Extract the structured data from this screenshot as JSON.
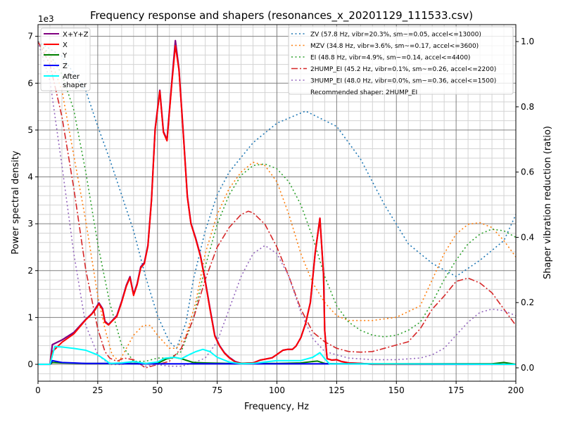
{
  "chart_data": {
    "type": "line",
    "title": "Frequency response and shapers (resonances_x_20201129_111533.csv)",
    "xlabel": "Frequency, Hz",
    "ylabel": "Power spectral density",
    "ylabel_right": "Shaper vibration reduction (ratio)",
    "y_offset_label": "1e3",
    "xlim": [
      0,
      200
    ],
    "ylim": [
      -360,
      7250
    ],
    "ylim_right": [
      -0.041,
      1.052
    ],
    "x_ticks": [
      "0",
      "25",
      "50",
      "75",
      "100",
      "125",
      "150",
      "175",
      "200"
    ],
    "y_ticks": [
      "0",
      "1",
      "2",
      "3",
      "4",
      "5",
      "6",
      "7"
    ],
    "y_ticks_right": [
      "0.0",
      "0.2",
      "0.4",
      "0.6",
      "0.8",
      "1.0"
    ],
    "grid": "major and minor",
    "legend_left": "top-left",
    "legend_right": "top-right",
    "recommended_text": "Recommended shaper: 2HUMP_EI",
    "psd_series": [
      {
        "name": "X+Y+Z",
        "color": "#800080",
        "width": 2.2,
        "x": [
          0,
          5,
          6,
          10,
          15,
          20,
          22.5,
          24,
          25.5,
          27,
          28,
          29.5,
          31,
          33,
          35,
          37,
          38.5,
          40,
          41.5,
          43,
          44.5,
          46,
          47.5,
          49,
          51,
          52.5,
          54,
          56,
          57.5,
          59,
          61,
          62.5,
          64,
          66,
          68,
          70,
          72,
          74,
          76,
          78,
          80,
          82.5,
          85,
          90,
          93,
          95,
          98,
          100,
          102.5,
          104.5,
          106.5,
          108,
          110,
          112,
          114,
          116,
          118,
          119.5,
          120,
          121,
          123,
          125,
          127,
          130,
          135,
          140,
          200
        ],
        "y": [
          0,
          0,
          420,
          520,
          680,
          960,
          1080,
          1190,
          1310,
          1190,
          920,
          850,
          930,
          1040,
          1340,
          1690,
          1870,
          1490,
          1720,
          2080,
          2170,
          2540,
          3520,
          5020,
          5850,
          4970,
          4790,
          6020,
          6910,
          6300,
          4790,
          3590,
          3010,
          2690,
          2320,
          1790,
          1190,
          620,
          400,
          250,
          150,
          60,
          20,
          30,
          90,
          110,
          140,
          210,
          300,
          320,
          320,
          390,
          570,
          870,
          1320,
          2370,
          3120,
          1920,
          720,
          120,
          90,
          100,
          60,
          30,
          20,
          0,
          0
        ]
      },
      {
        "name": "X",
        "color": "#ff0000",
        "width": 2,
        "x": [
          0,
          5,
          6,
          10,
          15,
          20,
          22.5,
          24,
          25.5,
          27,
          28,
          29.5,
          31,
          33,
          35,
          37,
          38.5,
          40,
          41.5,
          43,
          44.5,
          46,
          47.5,
          49,
          51,
          52.5,
          54,
          56,
          57.5,
          59,
          61,
          62.5,
          64,
          66,
          68,
          70,
          72,
          74,
          76,
          78,
          80,
          82.5,
          85,
          90,
          93,
          95,
          98,
          100,
          102.5,
          104.5,
          106.5,
          108,
          110,
          112,
          114,
          116,
          118,
          119.5,
          120,
          121,
          123,
          125,
          127,
          130,
          135,
          140,
          200
        ],
        "y": [
          0,
          0,
          270,
          470,
          650,
          950,
          1070,
          1170,
          1290,
          1170,
          900,
          840,
          920,
          1020,
          1320,
          1670,
          1850,
          1470,
          1700,
          2060,
          2150,
          2520,
          3500,
          5000,
          5830,
          4950,
          4770,
          5980,
          6800,
          6280,
          4770,
          3570,
          3000,
          2670,
          2300,
          1770,
          1170,
          600,
          390,
          240,
          140,
          50,
          20,
          30,
          90,
          110,
          140,
          210,
          300,
          320,
          320,
          390,
          570,
          870,
          1320,
          2370,
          3120,
          1920,
          720,
          120,
          90,
          100,
          60,
          30,
          20,
          0,
          0
        ]
      },
      {
        "name": "Y",
        "color": "#008000",
        "width": 2,
        "x": [
          0,
          5,
          6,
          10,
          20,
          30,
          40,
          50,
          54,
          57,
          60,
          65,
          70,
          80,
          100,
          110,
          115,
          117,
          120,
          125,
          150,
          190,
          195,
          200
        ],
        "y": [
          0,
          0,
          40,
          30,
          20,
          20,
          20,
          20,
          120,
          150,
          120,
          40,
          30,
          20,
          20,
          30,
          60,
          70,
          20,
          10,
          10,
          10,
          40,
          0
        ]
      },
      {
        "name": "Z",
        "color": "#0000ff",
        "width": 2,
        "x": [
          0,
          5,
          6,
          10,
          15,
          20,
          30,
          40,
          60,
          80,
          120,
          200
        ],
        "y": [
          0,
          0,
          80,
          40,
          30,
          20,
          20,
          10,
          10,
          10,
          10,
          0
        ]
      },
      {
        "name": "After\nshaper",
        "label_lines": [
          "After",
          "shaper"
        ],
        "color": "#00ffff",
        "width": 2,
        "x": [
          0,
          5,
          7,
          10,
          15,
          20,
          25,
          28,
          30,
          35,
          40,
          45,
          50,
          53,
          57,
          60,
          63,
          66,
          69,
          72,
          75,
          80,
          85,
          90,
          95,
          100,
          105,
          110,
          115,
          118,
          120,
          122,
          200
        ],
        "y": [
          0,
          0,
          380,
          370,
          340,
          300,
          200,
          100,
          20,
          30,
          60,
          20,
          50,
          130,
          150,
          120,
          200,
          270,
          320,
          270,
          150,
          50,
          10,
          20,
          50,
          80,
          80,
          80,
          150,
          250,
          120,
          10,
          0
        ]
      }
    ],
    "shaper_series": [
      {
        "name": "ZV (57.8 Hz, vibr=20.3%, sm~=0.05, accel<=13000)",
        "color": "#1f77b4",
        "dash": "2,3.5",
        "x": [
          0,
          10,
          20,
          25,
          30,
          35,
          40,
          45,
          50,
          55,
          58,
          62,
          65,
          70,
          75,
          80,
          90,
          100,
          112,
          125,
          135,
          145,
          150,
          155,
          165,
          175,
          185,
          195,
          200
        ],
        "y": [
          1.0,
          0.955,
          0.85,
          0.74,
          0.64,
          0.53,
          0.42,
          0.28,
          0.16,
          0.08,
          0.06,
          0.14,
          0.27,
          0.42,
          0.53,
          0.6,
          0.69,
          0.75,
          0.787,
          0.74,
          0.64,
          0.5,
          0.44,
          0.38,
          0.32,
          0.28,
          0.33,
          0.39,
          0.47
        ]
      },
      {
        "name": "MZV (34.8 Hz, vibr=3.6%, sm~=0.17, accel<=3600)",
        "color": "#ff7f0e",
        "dash": "2,3.5",
        "x": [
          0,
          5,
          10,
          15,
          20,
          25,
          28,
          31,
          34,
          37,
          40,
          44,
          47,
          50,
          55,
          58,
          62,
          66,
          70,
          75,
          80,
          85,
          90,
          95,
          100,
          105,
          110,
          115,
          120,
          125,
          130,
          140,
          150,
          160,
          165,
          170,
          175,
          180,
          185,
          190,
          195,
          200
        ],
        "y": [
          1.0,
          0.95,
          0.85,
          0.65,
          0.45,
          0.22,
          0.12,
          0.04,
          0.02,
          0.06,
          0.1,
          0.13,
          0.13,
          0.1,
          0.06,
          0.06,
          0.1,
          0.2,
          0.35,
          0.47,
          0.55,
          0.6,
          0.63,
          0.62,
          0.57,
          0.47,
          0.35,
          0.26,
          0.2,
          0.16,
          0.145,
          0.145,
          0.155,
          0.19,
          0.27,
          0.35,
          0.41,
          0.44,
          0.445,
          0.43,
          0.39,
          0.34
        ]
      },
      {
        "name": "EI (48.8 Hz, vibr=4.9%, sm~=0.14, accel<=4400)",
        "color": "#2ca02c",
        "dash": "2,3.5",
        "x": [
          0,
          5,
          10,
          15,
          20,
          25,
          30,
          35,
          40,
          45,
          50,
          55,
          60,
          65,
          70,
          75,
          80,
          85,
          90,
          95,
          100,
          105,
          110,
          115,
          120,
          125,
          130,
          135,
          140,
          145,
          150,
          155,
          160,
          165,
          170,
          175,
          180,
          185,
          190,
          195,
          200
        ],
        "y": [
          1.0,
          0.96,
          0.9,
          0.79,
          0.6,
          0.38,
          0.2,
          0.07,
          0.02,
          0.02,
          0.03,
          0.03,
          0.05,
          0.15,
          0.31,
          0.44,
          0.53,
          0.59,
          0.62,
          0.625,
          0.61,
          0.57,
          0.5,
          0.4,
          0.28,
          0.19,
          0.14,
          0.115,
          0.1,
          0.095,
          0.1,
          0.115,
          0.14,
          0.2,
          0.27,
          0.33,
          0.38,
          0.41,
          0.425,
          0.42,
          0.4
        ]
      },
      {
        "name": "2HUMP_EI (45.2 Hz, vibr=0.1%, sm~=0.26, accel<=2200)",
        "color": "#d62728",
        "dash": "9,3,2,3",
        "x": [
          0,
          5,
          10,
          15,
          20,
          25,
          28,
          30,
          33,
          36,
          40,
          43,
          45,
          50,
          55,
          60,
          65,
          70,
          75,
          80,
          85,
          88,
          90,
          95,
          100,
          105,
          110,
          115,
          120,
          125,
          130,
          135,
          140,
          145,
          150,
          155,
          160,
          165,
          170,
          175,
          180,
          185,
          190,
          195,
          200
        ],
        "y": [
          1.0,
          0.93,
          0.77,
          0.55,
          0.3,
          0.12,
          0.05,
          0.03,
          0.02,
          0.03,
          0.025,
          0.01,
          0.0,
          0.01,
          0.02,
          0.06,
          0.15,
          0.27,
          0.37,
          0.43,
          0.47,
          0.48,
          0.475,
          0.44,
          0.37,
          0.28,
          0.18,
          0.11,
          0.08,
          0.06,
          0.05,
          0.048,
          0.05,
          0.06,
          0.07,
          0.08,
          0.12,
          0.18,
          0.22,
          0.265,
          0.275,
          0.26,
          0.23,
          0.18,
          0.13
        ]
      },
      {
        "name": "3HUMP_EI (48.0 Hz, vibr=0.0%, sm~=0.36, accel<=1500)",
        "color": "#9467bd",
        "dash": "2,3.5",
        "x": [
          0,
          5,
          10,
          15,
          20,
          25,
          30,
          35,
          40,
          45,
          50,
          55,
          60,
          65,
          70,
          75,
          80,
          85,
          90,
          95,
          100,
          105,
          110,
          115,
          120,
          130,
          140,
          150,
          160,
          165,
          170,
          175,
          180,
          185,
          190,
          195,
          200
        ],
        "y": [
          1.0,
          0.88,
          0.62,
          0.35,
          0.13,
          0.04,
          0.01,
          0.01,
          0.015,
          0.005,
          0.01,
          0.005,
          0.005,
          0.015,
          0.03,
          0.08,
          0.18,
          0.28,
          0.35,
          0.375,
          0.35,
          0.28,
          0.17,
          0.09,
          0.05,
          0.03,
          0.025,
          0.025,
          0.03,
          0.04,
          0.06,
          0.1,
          0.14,
          0.17,
          0.18,
          0.175,
          0.16
        ]
      }
    ]
  }
}
